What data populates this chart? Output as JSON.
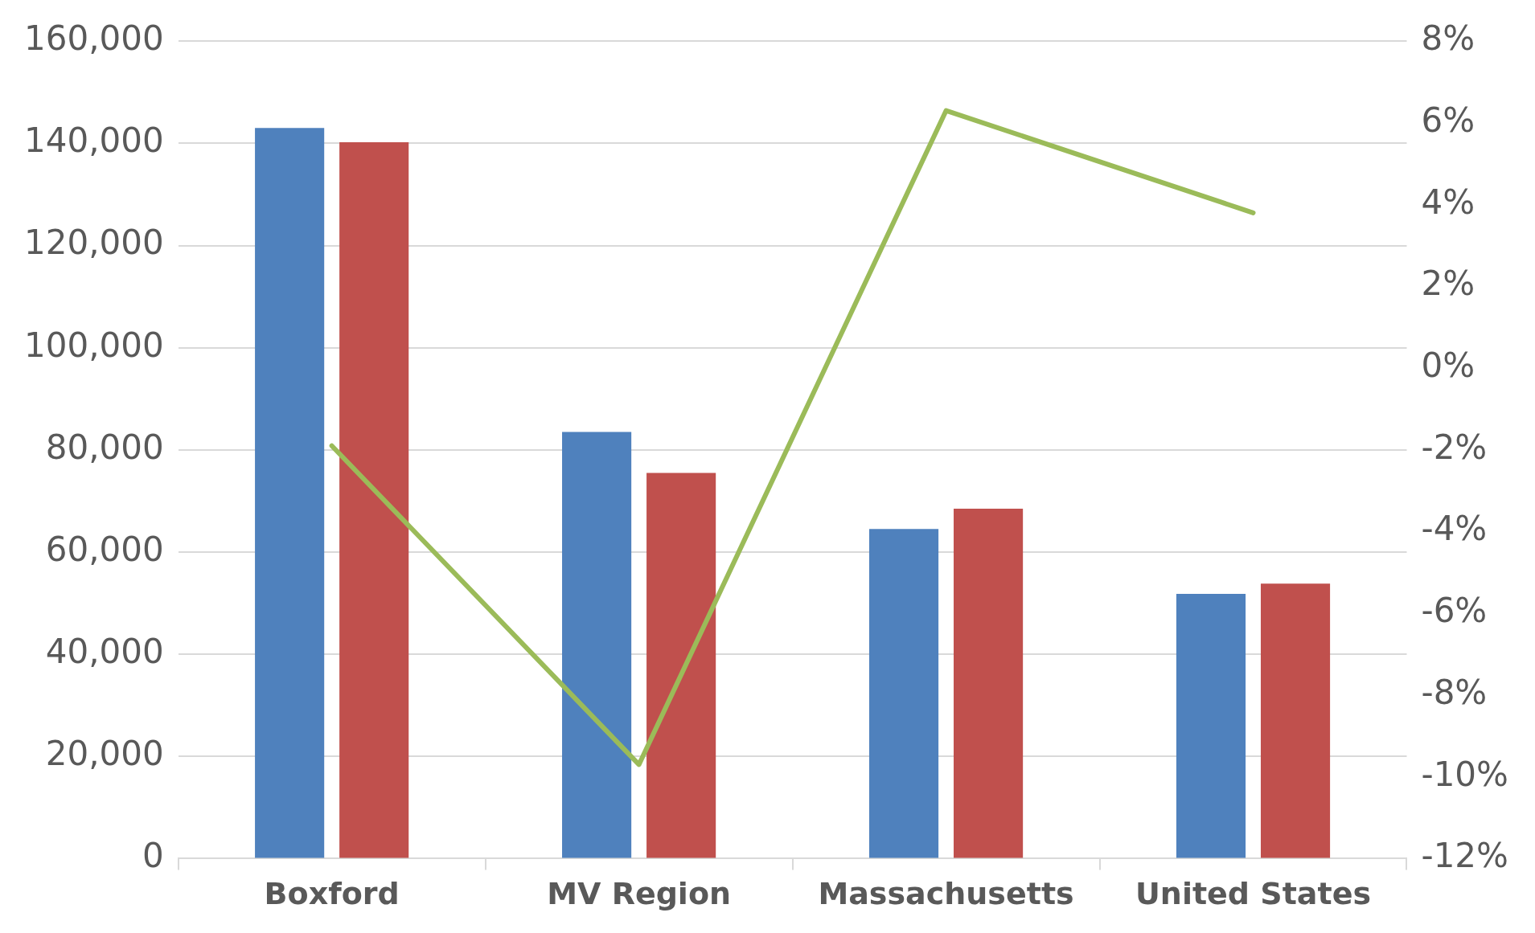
{
  "chart_data": {
    "type": "bar",
    "categories": [
      "Boxford",
      "MV Region",
      "Massachusetts",
      "United States"
    ],
    "series": [
      {
        "color": "#4f81bd",
        "values": [
          143000,
          83500,
          64500,
          51800
        ]
      },
      {
        "color": "#c0504d",
        "values": [
          140200,
          75500,
          68500,
          53800
        ]
      },
      {
        "type": "line",
        "axis": "y2",
        "color": "#9bbb59",
        "values": [
          -1.9,
          -9.7,
          6.3,
          3.8
        ]
      }
    ],
    "ylim": [
      0,
      160000
    ],
    "yticks": [
      {
        "value": 0,
        "label": "0"
      },
      {
        "value": 20000,
        "label": "20,000"
      },
      {
        "value": 40000,
        "label": "40,000"
      },
      {
        "value": 60000,
        "label": "60,000"
      },
      {
        "value": 80000,
        "label": "80,000"
      },
      {
        "value": 100000,
        "label": "100,000"
      },
      {
        "value": 120000,
        "label": "120,000"
      },
      {
        "value": 140000,
        "label": "140,000"
      },
      {
        "value": 160000,
        "label": "160,000"
      }
    ],
    "y2lim": [
      -12,
      8
    ],
    "y2ticks": [
      {
        "value": -12,
        "label": "-12%"
      },
      {
        "value": -10,
        "label": "-10%"
      },
      {
        "value": -8,
        "label": "-8%"
      },
      {
        "value": -6,
        "label": "-6%"
      },
      {
        "value": -4,
        "label": "-4%"
      },
      {
        "value": -2,
        "label": "-2%"
      },
      {
        "value": 0,
        "label": "0%"
      },
      {
        "value": 2,
        "label": "2%"
      },
      {
        "value": 4,
        "label": "4%"
      },
      {
        "value": 6,
        "label": "6%"
      },
      {
        "value": 8,
        "label": "8%"
      }
    ],
    "grid": "y",
    "legend": false,
    "marker": "none",
    "line_style": "solid"
  }
}
